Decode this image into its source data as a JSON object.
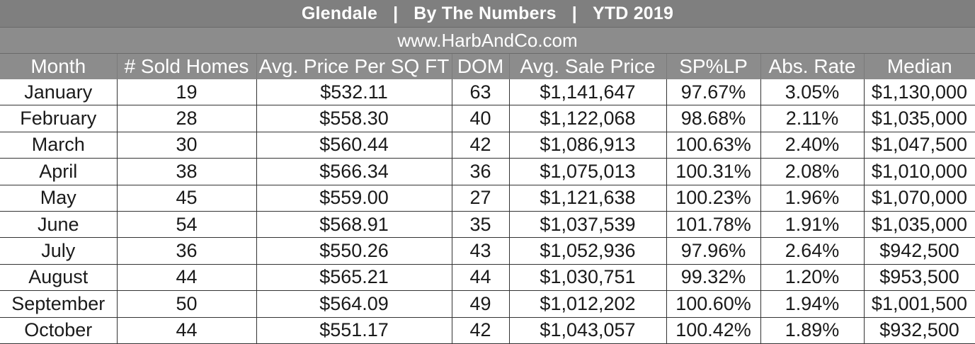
{
  "header": {
    "title_city": "Glendale",
    "separator": "|",
    "title_middle": "By The Numbers",
    "title_period": "YTD 2019",
    "url": "www.HarbAndCo.com"
  },
  "table": {
    "columns": [
      "Month",
      "# Sold Homes",
      "Avg. Price Per SQ FT",
      "DOM",
      "Avg. Sale Price",
      "SP%LP",
      "Abs. Rate",
      "Median"
    ],
    "rows": [
      [
        "January",
        "19",
        "$532.11",
        "63",
        "$1,141,647",
        "97.67%",
        "3.05%",
        "$1,130,000"
      ],
      [
        "February",
        "28",
        "$558.30",
        "40",
        "$1,122,068",
        "98.68%",
        "2.11%",
        "$1,035,000"
      ],
      [
        "March",
        "30",
        "$560.44",
        "42",
        "$1,086,913",
        "100.63%",
        "2.40%",
        "$1,047,500"
      ],
      [
        "April",
        "38",
        "$566.34",
        "36",
        "$1,075,013",
        "100.31%",
        "2.08%",
        "$1,010,000"
      ],
      [
        "May",
        "45",
        "$559.00",
        "27",
        "$1,121,638",
        "100.23%",
        "1.96%",
        "$1,070,000"
      ],
      [
        "June",
        "54",
        "$568.91",
        "35",
        "$1,037,539",
        "101.78%",
        "1.91%",
        "$1,035,000"
      ],
      [
        "July",
        "36",
        "$550.26",
        "43",
        "$1,052,936",
        "97.96%",
        "2.64%",
        "$942,500"
      ],
      [
        "August",
        "44",
        "$565.21",
        "44",
        "$1,030,751",
        "99.32%",
        "1.20%",
        "$953,500"
      ],
      [
        "September",
        "50",
        "$564.09",
        "49",
        "$1,012,202",
        "100.60%",
        "1.94%",
        "$1,001,500"
      ],
      [
        "October",
        "44",
        "$551.17",
        "42",
        "$1,043,057",
        "100.42%",
        "1.89%",
        "$932,500"
      ]
    ]
  },
  "colors": {
    "title_bg": "#7f7f7f",
    "header_bg": "#8c8c8c",
    "header_text": "#ffffff",
    "cell_text": "#1a1a1a"
  }
}
